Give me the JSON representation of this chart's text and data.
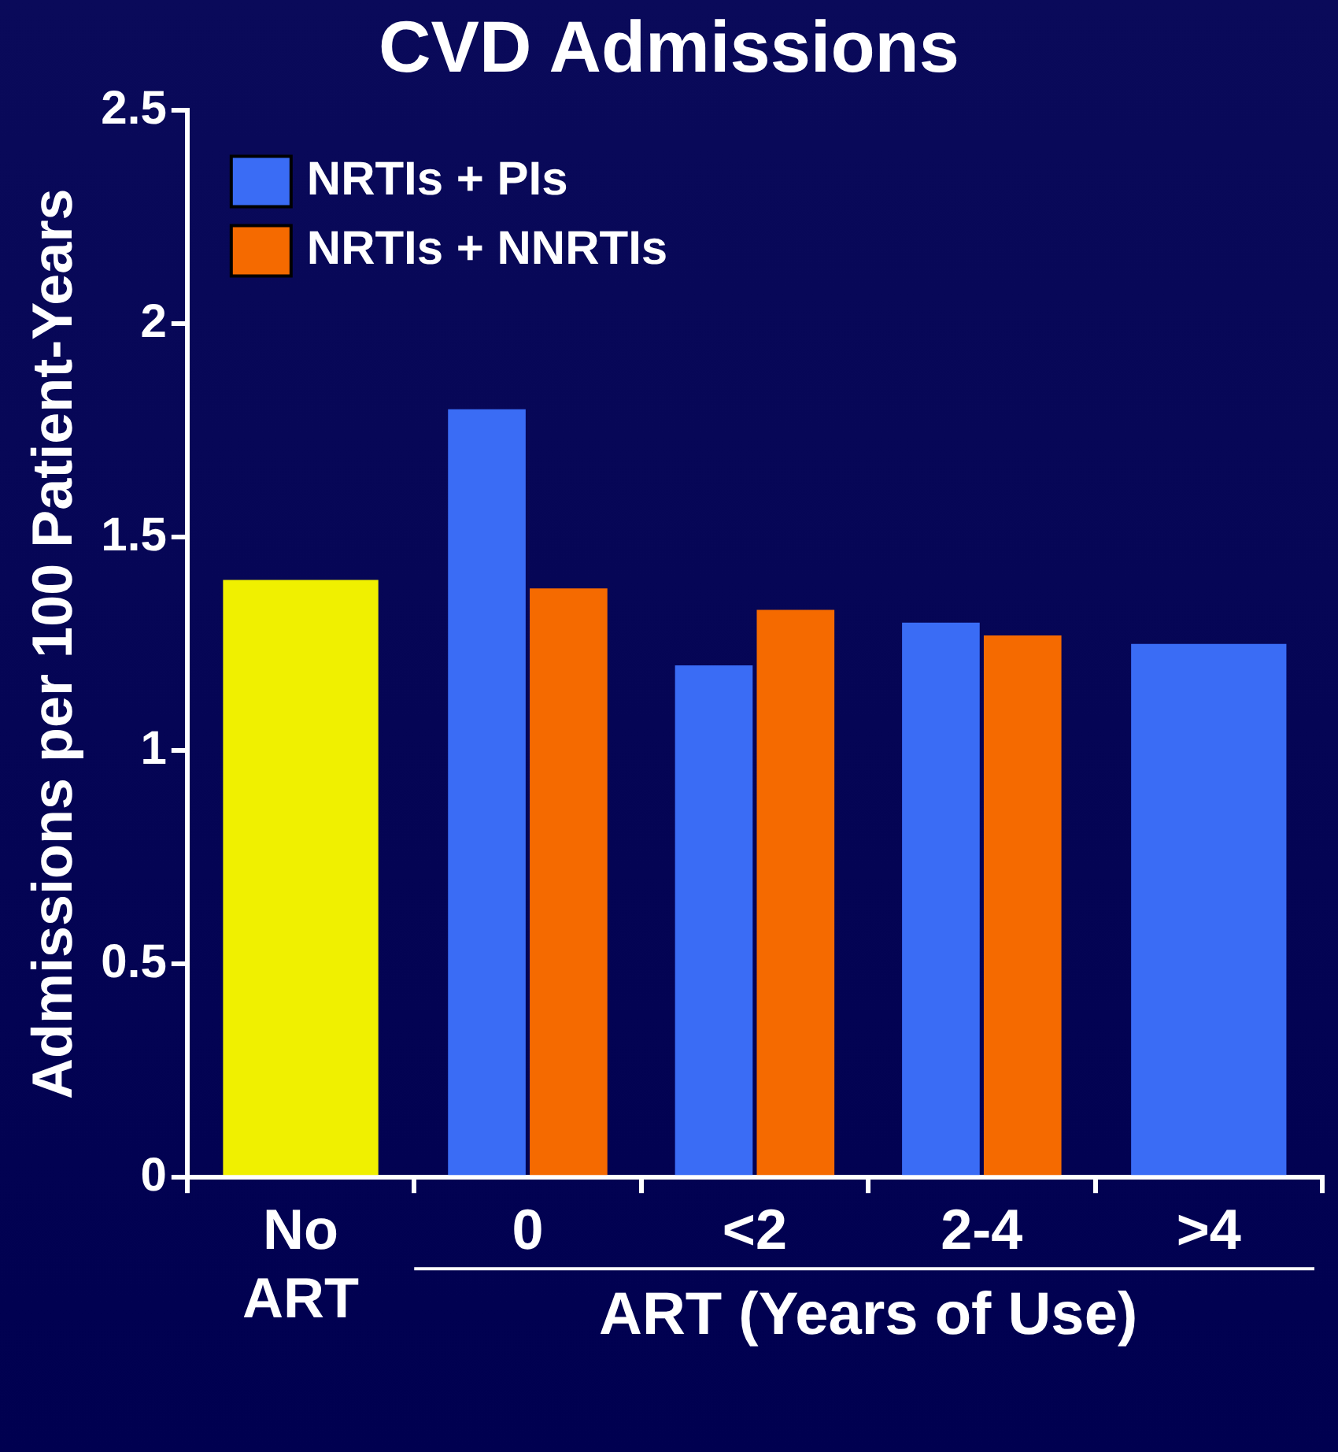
{
  "chart_data": {
    "type": "bar",
    "title": "CVD Admissions",
    "ylabel": "Admissions per 100 Patient-Years",
    "xlabel": "ART (Years of Use)",
    "categories": [
      "No ART",
      "0",
      "<2",
      "2-4",
      ">4"
    ],
    "series": [
      {
        "color": "#f0f000",
        "values": [
          1.4,
          null,
          null,
          null,
          null
        ]
      },
      {
        "name": "NRTIs + PIs",
        "color": "#3a6cf5",
        "values": [
          null,
          1.8,
          1.2,
          1.3,
          1.25
        ]
      },
      {
        "name": "NRTIs + NNRTIs",
        "color": "#f56a00",
        "values": [
          null,
          1.38,
          1.33,
          1.27,
          null
        ]
      }
    ],
    "ylim": [
      0,
      2.5
    ],
    "yticks": [
      0,
      0.5,
      1,
      1.5,
      2,
      2.5
    ],
    "grid": false,
    "legend": "top left"
  }
}
